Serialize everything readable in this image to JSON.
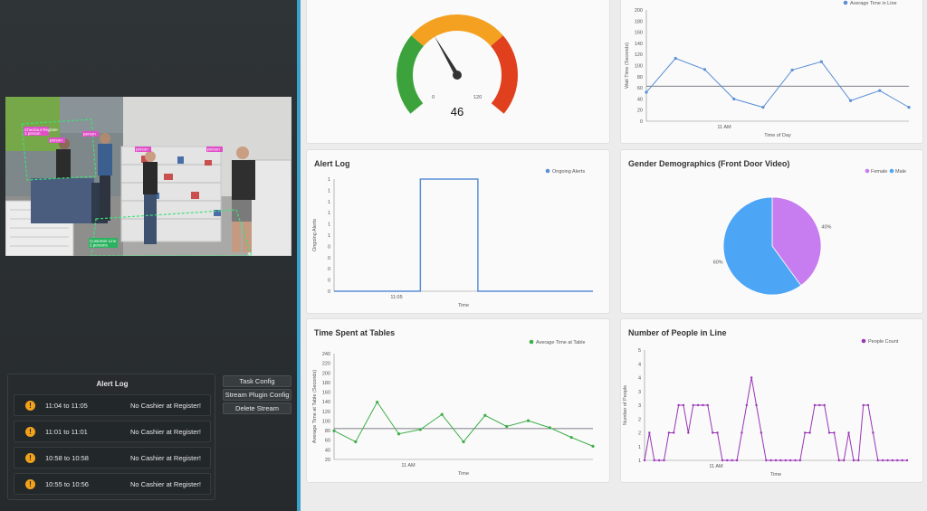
{
  "video": {
    "labels": {
      "checkout": "Checkout Register",
      "checkout_count": "1 person",
      "person1": "person",
      "person2": "person",
      "person3": "person",
      "person4": "person",
      "line": "Customer Line",
      "line_count": "2 persons"
    }
  },
  "alert_panel": {
    "title": "Alert Log",
    "alerts": [
      {
        "time": "11:04 to 11:05",
        "message": "No Cashier at Register!"
      },
      {
        "time": "11:01 to 11:01",
        "message": "No Cashier at Register!"
      },
      {
        "time": "10:58 to 10:58",
        "message": "No Cashier at Register!"
      },
      {
        "time": "10:55 to 10:56",
        "message": "No Cashier at Register!"
      }
    ]
  },
  "buttons": {
    "task_config": "Task Config",
    "stream_plugin_config": "Stream Plugin Config",
    "delete_stream": "Delete Stream"
  },
  "colors": {
    "gauge_green": "#3ca33c",
    "gauge_orange": "#f4a020",
    "gauge_red": "#e0401e",
    "blue": "#5b8fd6",
    "green": "#3fae4a",
    "purple": "#9b35b8",
    "pie_blue": "#4da6f5",
    "pie_purple": "#c77cf0"
  },
  "chart_data": [
    {
      "type": "gauge",
      "min_label": "0",
      "max_label": "120",
      "min": 0,
      "max": 120,
      "value": 46,
      "value_label": "46"
    },
    {
      "type": "line",
      "legend": "Average Time in Line",
      "xlabel": "Time of Day",
      "ylabel": "Wait Time (Seconds)",
      "ylim": [
        0,
        200
      ],
      "yticks": [
        "200",
        "180",
        "160",
        "140",
        "120",
        "100",
        "80",
        "60",
        "40",
        "20",
        "0"
      ],
      "xtick": "11 AM",
      "values": [
        52,
        113,
        93,
        40,
        25,
        92,
        107,
        37,
        55,
        25
      ],
      "reference": 63
    },
    {
      "type": "line",
      "title": "Alert Log",
      "legend": "Ongoing Alerts",
      "xlabel": "Time",
      "ylabel": "Ongoing Alerts",
      "ylim": [
        0,
        1
      ],
      "yticks": [
        "1",
        "1",
        "1",
        "1",
        "1",
        "1",
        "0",
        "0",
        "0",
        "0",
        "0"
      ],
      "xtick": "11:05",
      "values": [
        0,
        0,
        0,
        1,
        1,
        0,
        0,
        0,
        0,
        0
      ]
    },
    {
      "type": "pie",
      "title": "Gender Demographics (Front Door Video)",
      "labels": [
        "Female",
        "Male"
      ],
      "values": [
        40,
        60
      ],
      "value_labels": [
        "40%",
        "60%"
      ]
    },
    {
      "type": "line",
      "title": "Time Spent at Tables",
      "legend": "Average Time at Table",
      "xlabel": "Time",
      "ylabel": "Average Time at Table (Seconds)",
      "ylim": [
        0,
        240
      ],
      "yticks": [
        "240",
        "220",
        "200",
        "180",
        "160",
        "140",
        "120",
        "100",
        "80",
        "60",
        "40",
        "20"
      ],
      "xtick": "11 AM",
      "values": [
        65,
        40,
        130,
        58,
        68,
        102,
        40,
        100,
        75,
        88,
        72,
        50,
        30
      ],
      "reference": 70
    },
    {
      "type": "line",
      "title": "Number of People in Line",
      "legend": "People Count",
      "xlabel": "Time",
      "ylabel": "Number of People",
      "ylim": [
        1,
        5
      ],
      "yticks": [
        "5",
        "4",
        "4",
        "3",
        "3",
        "2",
        "2",
        "1",
        "1"
      ],
      "xtick": "11 AM",
      "values": [
        1,
        2,
        1,
        1,
        1,
        2,
        2,
        3,
        3,
        2,
        3,
        3,
        3,
        3,
        2,
        2,
        1,
        1,
        1,
        1,
        2,
        3,
        4,
        3,
        2,
        1,
        1,
        1,
        1,
        1,
        1,
        1,
        1,
        2,
        2,
        3,
        3,
        3,
        2,
        2,
        1,
        1,
        2,
        1,
        1,
        3,
        3,
        2,
        1,
        1,
        1,
        1,
        1,
        1,
        1
      ]
    }
  ]
}
